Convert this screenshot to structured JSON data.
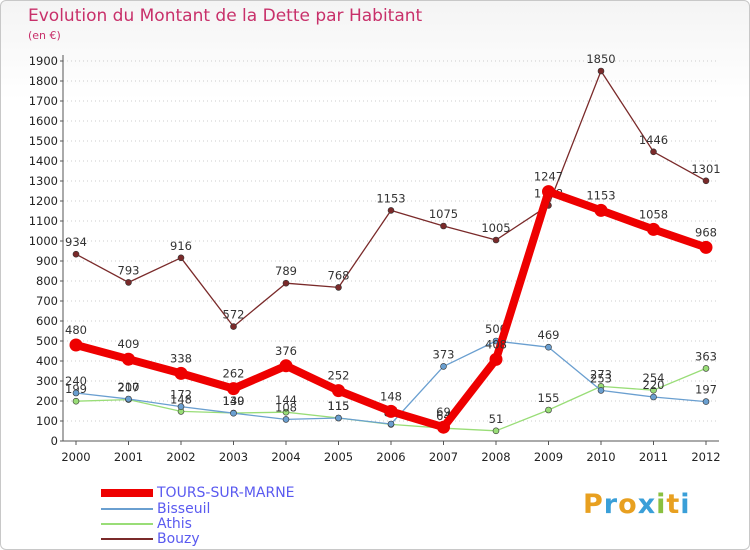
{
  "header": {
    "title": "Evolution du Montant de la Dette par Habitant",
    "unit": "(en €)"
  },
  "logo": {
    "text": "Proxiti",
    "colors": [
      "#e8a020",
      "#3a9fd8",
      "#e8a020",
      "#3a9fd8",
      "#8ac040",
      "#e8a020",
      "#3a9fd8"
    ]
  },
  "chart_data": {
    "type": "line",
    "title": "Evolution du Montant de la Dette par Habitant",
    "ylabel": "(en €)",
    "xlabel": "",
    "x": [
      "2000",
      "2001",
      "2002",
      "2003",
      "2004",
      "2005",
      "2006",
      "2007",
      "2008",
      "2009",
      "2010",
      "2011",
      "2012"
    ],
    "ylim": [
      0,
      1900
    ],
    "yticks": [
      0,
      100,
      200,
      300,
      400,
      500,
      600,
      700,
      800,
      900,
      1000,
      1100,
      1200,
      1300,
      1400,
      1500,
      1600,
      1700,
      1800,
      1900
    ],
    "legend_position": "bottom-left",
    "series": [
      {
        "name": "TOURS-SUR-MARNE",
        "color": "#ee0000",
        "values": [
          480,
          409,
          338,
          262,
          376,
          252,
          148,
          69,
          408,
          1247,
          1153,
          1058,
          968
        ]
      },
      {
        "name": "Bisseuil",
        "color": "#6a9fd0",
        "values": [
          240,
          210,
          172,
          139,
          108,
          115,
          85,
          373,
          500,
          469,
          253,
          220,
          197
        ]
      },
      {
        "name": "Athis",
        "color": "#99dd77",
        "values": [
          199,
          207,
          148,
          140,
          144,
          115,
          83,
          64,
          51,
          155,
          273,
          254,
          363
        ]
      },
      {
        "name": "Bouzy",
        "color": "#7a2a2a",
        "values": [
          934,
          793,
          916,
          572,
          789,
          768,
          1153,
          1075,
          1005,
          1178,
          1850,
          1446,
          1301
        ]
      }
    ]
  }
}
